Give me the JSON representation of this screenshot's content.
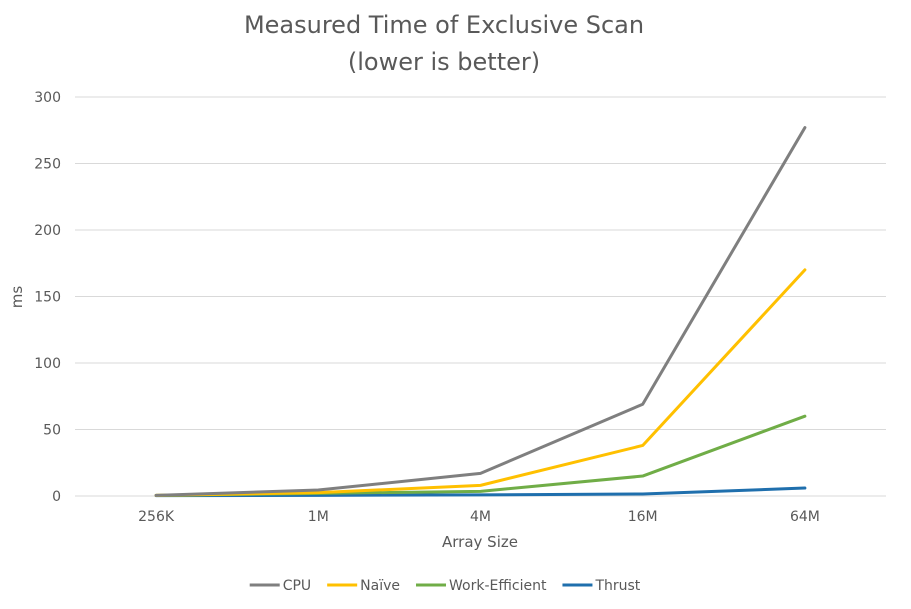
{
  "chart_data": {
    "type": "line",
    "title": "Measured Time of Exclusive Scan",
    "subtitle": "(lower is better)",
    "xlabel": "Array Size",
    "ylabel": "ms",
    "categories": [
      "256K",
      "1M",
      "4M",
      "16M",
      "64M"
    ],
    "ylim": [
      0,
      300
    ],
    "yticks": [
      "0",
      "50",
      "100",
      "150",
      "200",
      "250",
      "300"
    ],
    "grid": true,
    "legend_position": "bottom",
    "series": [
      {
        "name": "CPU",
        "color": "#7f7f7f",
        "values": [
          0.5,
          4.5,
          17,
          69,
          277
        ]
      },
      {
        "name": "Naïve",
        "color": "#ffc000",
        "values": [
          0.5,
          2.5,
          8,
          38,
          170
        ]
      },
      {
        "name": "Work-Efficient",
        "color": "#70ad47",
        "values": [
          0.5,
          2,
          3.5,
          15,
          60
        ]
      },
      {
        "name": "Thrust",
        "color": "#1f6fad",
        "values": [
          0.3,
          0.5,
          0.8,
          1.5,
          6
        ]
      }
    ]
  }
}
